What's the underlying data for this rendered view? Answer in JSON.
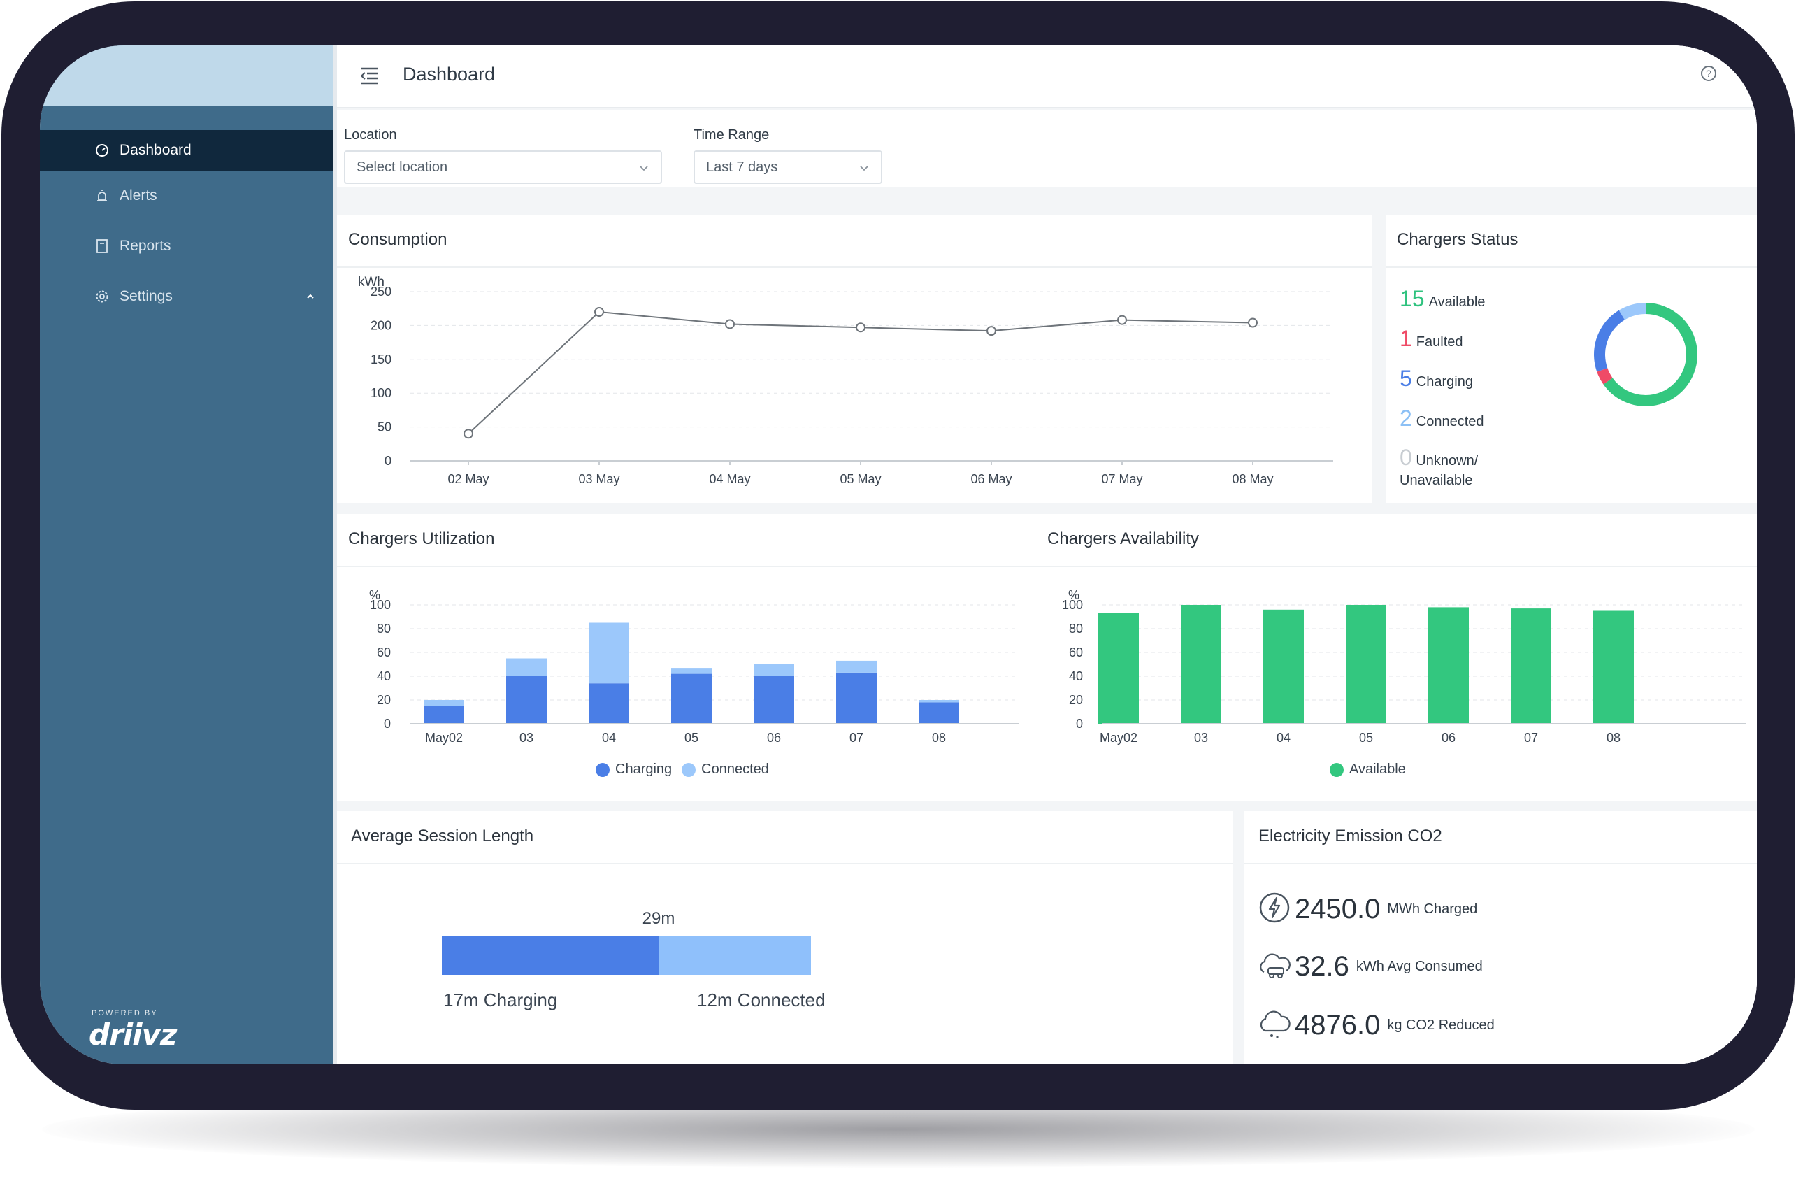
{
  "sidebar": {
    "items": [
      {
        "label": "Dashboard",
        "icon": "dashboard-icon",
        "active": true
      },
      {
        "label": "Alerts",
        "icon": "alarm-icon"
      },
      {
        "label": "Reports",
        "icon": "document-icon"
      },
      {
        "label": "Settings",
        "icon": "gear-icon"
      }
    ],
    "powered_by": "POWERED BY",
    "brand": "driivz"
  },
  "header": {
    "title": "Dashboard"
  },
  "filters": {
    "location_label": "Location",
    "location_placeholder": "Select location",
    "time_label": "Time Range",
    "time_value": "Last 7 days"
  },
  "consumption": {
    "title": "Consumption"
  },
  "chargers_status": {
    "title": "Chargers Status",
    "rows": [
      {
        "count": "15",
        "label": "Available",
        "color": "#2ec27e"
      },
      {
        "count": "1",
        "label": "Faulted",
        "color": "#ef4b67"
      },
      {
        "count": "5",
        "label": "Charging",
        "color": "#4a7ee6"
      },
      {
        "count": "2",
        "label": "Connected",
        "color": "#8cc0f5"
      }
    ],
    "unknown_count": "0",
    "unknown_label_1": "Unknown/",
    "unknown_label_2": "Unavailable"
  },
  "utilization": {
    "title": "Chargers Utilization",
    "legend_charging": "Charging",
    "legend_connected": "Connected"
  },
  "availability": {
    "title": "Chargers Availability",
    "legend_available": "Available"
  },
  "session": {
    "title": "Average Session Length",
    "total": "29m",
    "charging_label": "17m Charging",
    "connected_label": "12m Connected",
    "charging_minutes": 17,
    "connected_minutes": 12
  },
  "emission": {
    "title": "Electricity Emission CO2",
    "rows": [
      {
        "value": "2450.0",
        "unit": "MWh Charged",
        "icon": "lightning-icon"
      },
      {
        "value": "32.6",
        "unit": "kWh Avg Consumed",
        "icon": "car-cloud-icon"
      },
      {
        "value": "4876.0",
        "unit": "kg CO2 Reduced",
        "icon": "cloud-icon"
      }
    ]
  },
  "colors": {
    "charging": "#4a7ee6",
    "connected": "#9cc8fb",
    "available": "#33c77f",
    "faulted": "#ef4b67",
    "sidebar": "#3f6b8a"
  },
  "chart_data": [
    {
      "type": "line",
      "title": "Consumption",
      "ylabel": "kWh",
      "categories": [
        "02 May",
        "03 May",
        "04 May",
        "05 May",
        "06 May",
        "07 May",
        "08 May"
      ],
      "values": [
        40,
        220,
        202,
        197,
        192,
        208,
        204
      ],
      "yticks": [
        250,
        200,
        150,
        100,
        50,
        0
      ],
      "ylim": [
        0,
        250
      ],
      "grid": true
    },
    {
      "type": "bar",
      "title": "Chargers Utilization",
      "ylabel": "%",
      "categories": [
        "May02",
        "03",
        "04",
        "05",
        "06",
        "07",
        "08"
      ],
      "series": [
        {
          "name": "Charging",
          "values": [
            15,
            40,
            34,
            42,
            40,
            43,
            18
          ]
        },
        {
          "name": "Connected",
          "values": [
            5,
            15,
            51,
            5,
            10,
            10,
            2
          ]
        }
      ],
      "yticks": [
        100,
        80,
        60,
        40,
        20,
        0
      ],
      "ylim": [
        0,
        100
      ],
      "stacked": true,
      "legend": "bottom"
    },
    {
      "type": "bar",
      "title": "Chargers Availability",
      "ylabel": "%",
      "categories": [
        "May02",
        "03",
        "04",
        "05",
        "06",
        "07",
        "08"
      ],
      "series": [
        {
          "name": "Available",
          "values": [
            93,
            100,
            96,
            100,
            98,
            97,
            95
          ]
        }
      ],
      "yticks": [
        100,
        80,
        60,
        40,
        20,
        0
      ],
      "ylim": [
        0,
        100
      ],
      "legend": "bottom"
    },
    {
      "type": "pie",
      "title": "Chargers Status",
      "categories": [
        "Available",
        "Faulted",
        "Charging",
        "Connected",
        "Unknown/Unavailable"
      ],
      "values": [
        15,
        1,
        5,
        2,
        0
      ],
      "donut": true
    }
  ]
}
